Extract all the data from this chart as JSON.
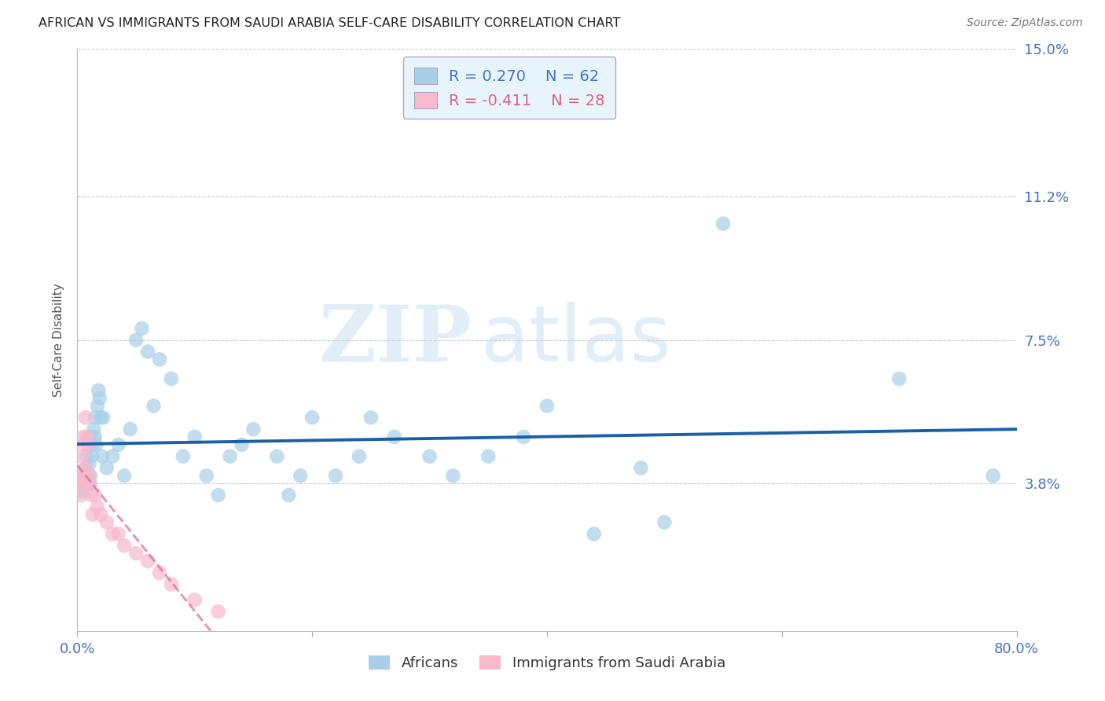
{
  "title": "AFRICAN VS IMMIGRANTS FROM SAUDI ARABIA SELF-CARE DISABILITY CORRELATION CHART",
  "source": "Source: ZipAtlas.com",
  "ylabel": "Self-Care Disability",
  "xlim": [
    0.0,
    80.0
  ],
  "ylim": [
    0.0,
    15.0
  ],
  "ytick_vals": [
    0.0,
    3.8,
    7.5,
    11.2,
    15.0
  ],
  "ytick_labels": [
    "",
    "3.8%",
    "7.5%",
    "11.2%",
    "15.0%"
  ],
  "xtick_vals": [
    0.0,
    20.0,
    40.0,
    60.0,
    80.0
  ],
  "xtick_labels": [
    "0.0%",
    "",
    "",
    "",
    "80.0%"
  ],
  "series1_label": "Africans",
  "series1_color": "#a8cfe8",
  "series1_line_color": "#1a5fa8",
  "series1_R": "0.270",
  "series1_N": "62",
  "series2_label": "Immigrants from Saudi Arabia",
  "series2_color": "#f9b8cc",
  "series2_line_color": "#e06080",
  "series2_R": "-0.411",
  "series2_N": "28",
  "legend_bg_color": "#e8f4fc",
  "title_color": "#222222",
  "axis_tick_color": "#4472c4",
  "bg_color": "#ffffff",
  "grid_color": "#cccccc",
  "watermark_zip": "ZIP",
  "watermark_atlas": "atlas",
  "africans_x": [
    0.3,
    0.4,
    0.5,
    0.5,
    0.6,
    0.7,
    0.8,
    0.8,
    0.9,
    1.0,
    1.0,
    1.1,
    1.1,
    1.2,
    1.3,
    1.4,
    1.5,
    1.5,
    1.6,
    1.7,
    1.8,
    1.9,
    2.0,
    2.1,
    2.2,
    2.5,
    3.0,
    3.5,
    4.0,
    4.5,
    5.0,
    5.5,
    6.0,
    6.5,
    7.0,
    8.0,
    9.0,
    10.0,
    11.0,
    12.0,
    13.0,
    14.0,
    15.0,
    17.0,
    18.0,
    19.0,
    20.0,
    22.0,
    24.0,
    25.0,
    27.0,
    30.0,
    32.0,
    35.0,
    38.0,
    40.0,
    44.0,
    48.0,
    50.0,
    55.0,
    70.0,
    78.0
  ],
  "africans_y": [
    3.8,
    3.6,
    3.7,
    4.0,
    3.9,
    4.2,
    3.8,
    4.5,
    4.0,
    3.8,
    4.3,
    4.0,
    5.0,
    4.5,
    4.8,
    5.2,
    5.5,
    5.0,
    4.8,
    5.8,
    6.2,
    6.0,
    5.5,
    4.5,
    5.5,
    4.2,
    4.5,
    4.8,
    4.0,
    5.2,
    7.5,
    7.8,
    7.2,
    5.8,
    7.0,
    6.5,
    4.5,
    5.0,
    4.0,
    3.5,
    4.5,
    4.8,
    5.2,
    4.5,
    3.5,
    4.0,
    5.5,
    4.0,
    4.5,
    5.5,
    5.0,
    4.5,
    4.0,
    4.5,
    5.0,
    5.8,
    2.5,
    4.2,
    2.8,
    10.5,
    6.5,
    4.0
  ],
  "saudi_x": [
    0.2,
    0.3,
    0.3,
    0.4,
    0.5,
    0.5,
    0.6,
    0.7,
    0.7,
    0.8,
    0.9,
    1.0,
    1.1,
    1.2,
    1.3,
    1.5,
    1.7,
    2.0,
    2.5,
    3.0,
    3.5,
    4.0,
    5.0,
    6.0,
    7.0,
    8.0,
    10.0,
    12.0
  ],
  "saudi_y": [
    3.8,
    4.0,
    3.5,
    4.5,
    5.0,
    3.8,
    4.8,
    5.5,
    4.2,
    5.0,
    4.8,
    4.0,
    3.8,
    3.5,
    3.0,
    3.5,
    3.2,
    3.0,
    2.8,
    2.5,
    2.5,
    2.2,
    2.0,
    1.8,
    1.5,
    1.2,
    0.8,
    0.5
  ]
}
